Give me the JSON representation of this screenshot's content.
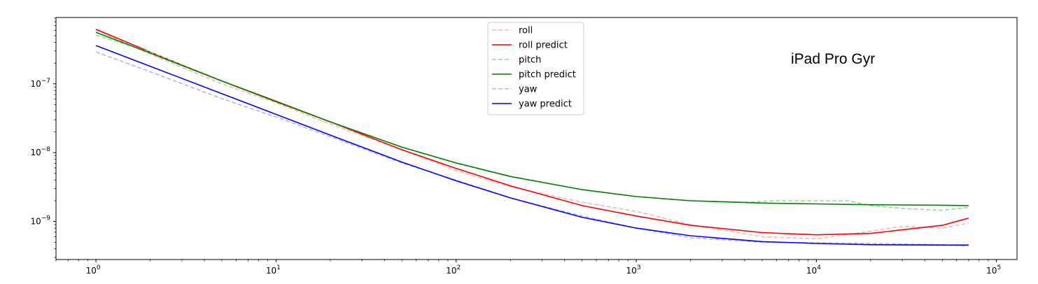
{
  "chart_data": {
    "type": "line",
    "title": "",
    "xlabel": "",
    "ylabel": "",
    "xscale": "log",
    "yscale": "log",
    "xlim": [
      0.6,
      130000
    ],
    "ylim": [
      2.8e-10,
      9.2e-07
    ],
    "grid": false,
    "legend_position": "top-center",
    "annotation": "iPad Pro Gyr",
    "x_ticks": [
      {
        "value": 1,
        "base": "10",
        "exp": "0"
      },
      {
        "value": 10,
        "base": "10",
        "exp": "1"
      },
      {
        "value": 100,
        "base": "10",
        "exp": "2"
      },
      {
        "value": 1000,
        "base": "10",
        "exp": "3"
      },
      {
        "value": 10000,
        "base": "10",
        "exp": "4"
      },
      {
        "value": 100000,
        "base": "10",
        "exp": "5"
      }
    ],
    "y_ticks": [
      {
        "value": 1e-07,
        "base": "10",
        "exp": "−7"
      },
      {
        "value": 1e-08,
        "base": "10",
        "exp": "−8"
      },
      {
        "value": 1e-09,
        "base": "10",
        "exp": "−9"
      }
    ],
    "series": [
      {
        "name": "roll",
        "color": "#ffb3b3",
        "dashed": true,
        "x": [
          1,
          2,
          5,
          10,
          20,
          50,
          100,
          200,
          500,
          1000,
          2000,
          5000,
          10000,
          20000,
          30000,
          50000,
          70000
        ],
        "y": [
          6.1e-07,
          2.7e-07,
          1e-07,
          5.3e-08,
          2.6e-08,
          1.1e-08,
          5.5e-09,
          3.2e-09,
          1.9e-09,
          1.4e-09,
          9e-10,
          6e-10,
          5.6e-10,
          7.2e-10,
          8.5e-10,
          8e-10,
          9.5e-10
        ]
      },
      {
        "name": "roll predict",
        "color": "#ff0000",
        "dashed": false,
        "x": [
          1,
          2,
          5,
          10,
          20,
          50,
          100,
          200,
          500,
          1000,
          2000,
          5000,
          10000,
          20000,
          50000,
          70000
        ],
        "y": [
          6.2e-07,
          2.9e-07,
          1.1e-07,
          5.6e-08,
          2.8e-08,
          1.1e-08,
          5.9e-09,
          3.3e-09,
          1.7e-09,
          1.2e-09,
          8.8e-10,
          6.9e-10,
          6.4e-10,
          6.7e-10,
          8.8e-10,
          1.12e-09
        ]
      },
      {
        "name": "pitch",
        "color": "#9fd49f",
        "dashed": true,
        "x": [
          1,
          2,
          5,
          10,
          20,
          50,
          100,
          200,
          500,
          1000,
          2000,
          4000,
          6000,
          15000,
          20000,
          30000,
          50000,
          70000
        ],
        "y": [
          5.1e-07,
          2.9e-07,
          1.1e-07,
          5.5e-08,
          2.8e-08,
          1.2e-08,
          7e-09,
          4.5e-09,
          2.9e-09,
          2.3e-09,
          2e-09,
          1.9e-09,
          2e-09,
          2e-09,
          1.7e-09,
          1.55e-09,
          1.45e-09,
          1.6e-09
        ]
      },
      {
        "name": "pitch predict",
        "color": "#008000",
        "dashed": false,
        "x": [
          1,
          2,
          5,
          10,
          20,
          50,
          100,
          200,
          500,
          1000,
          2000,
          5000,
          10000,
          20000,
          50000,
          70000
        ],
        "y": [
          5.6e-07,
          2.8e-07,
          1.1e-07,
          5.5e-08,
          2.8e-08,
          1.2e-08,
          7.1e-09,
          4.5e-09,
          2.9e-09,
          2.3e-09,
          2e-09,
          1.85e-09,
          1.8e-09,
          1.75e-09,
          1.72e-09,
          1.7e-09
        ]
      },
      {
        "name": "yaw",
        "color": "#b3b3ff",
        "dashed": true,
        "x": [
          1,
          2,
          5,
          10,
          20,
          50,
          100,
          200,
          500,
          1000,
          2000,
          5000,
          10000,
          20000,
          50000,
          70000
        ],
        "y": [
          2.9e-07,
          1.5e-07,
          6.1e-08,
          3.3e-08,
          1.7e-08,
          7.1e-09,
          4e-09,
          2.2e-09,
          1.2e-09,
          8e-10,
          5.8e-10,
          5e-10,
          4.9e-10,
          4.8e-10,
          4.6e-10,
          4.4e-10
        ]
      },
      {
        "name": "yaw predict",
        "color": "#0000ff",
        "dashed": false,
        "x": [
          1,
          2,
          5,
          10,
          20,
          50,
          100,
          200,
          500,
          1000,
          2000,
          5000,
          10000,
          20000,
          50000,
          70000
        ],
        "y": [
          3.6e-07,
          1.8e-07,
          7.2e-08,
          3.6e-08,
          1.8e-08,
          7.3e-09,
          3.9e-09,
          2.2e-09,
          1.15e-09,
          8e-10,
          6.2e-10,
          5.1e-10,
          4.8e-10,
          4.6e-10,
          4.55e-10,
          4.55e-10
        ]
      }
    ]
  }
}
